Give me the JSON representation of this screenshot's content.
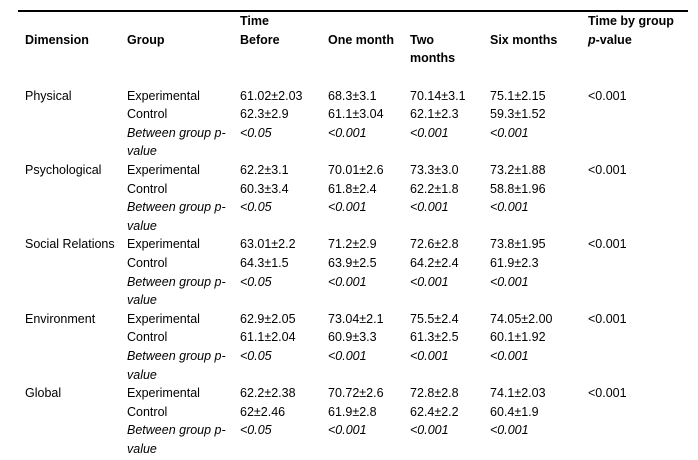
{
  "header": {
    "dimension": "Dimension",
    "group": "Group",
    "time": "Time",
    "before": "Before",
    "one_month": "One month",
    "two_line1": "Two",
    "two_line2": "months",
    "six_months": "Six months",
    "time_by_group": "Time by group",
    "p_italic": "p",
    "p_rest": "-value"
  },
  "blocks": [
    {
      "dimension": "Physical",
      "rows": [
        {
          "group": "Experimental",
          "values": [
            "61.02±2.03",
            "68.3±3.1",
            "70.14±3.1",
            "75.1±2.15"
          ],
          "time_by_group": "<0.001"
        },
        {
          "group": "Control",
          "values": [
            "62.3±2.9",
            "61.1±3.04",
            "62.1±2.3",
            "59.3±1.52"
          ],
          "time_by_group": ""
        },
        {
          "group": "Between group p-value",
          "values": [
            "<0.05",
            "<0.001",
            "<0.001",
            "<0.001"
          ],
          "time_by_group": ""
        }
      ]
    },
    {
      "dimension": "Psychological",
      "rows": [
        {
          "group": "Experimental",
          "values": [
            "62.2±3.1",
            "70.01±2.6",
            "73.3±3.0",
            "73.2±1.88"
          ],
          "time_by_group": "<0.001"
        },
        {
          "group": "Control",
          "values": [
            "60.3±3.4",
            "61.8±2.4",
            "62.2±1.8",
            "58.8±1.96"
          ],
          "time_by_group": ""
        },
        {
          "group": "Between group p-value",
          "values": [
            "<0.05",
            "<0.001",
            "<0.001",
            "<0.001"
          ],
          "time_by_group": ""
        }
      ]
    },
    {
      "dimension": "Social Relations",
      "rows": [
        {
          "group": "Experimental",
          "values": [
            "63.01±2.2",
            "71.2±2.9",
            "72.6±2.8",
            "73.8±1.95"
          ],
          "time_by_group": "<0.001"
        },
        {
          "group": "Control",
          "values": [
            "64.3±1.5",
            "63.9±2.5",
            "64.2±2.4",
            "61.9±2.3"
          ],
          "time_by_group": ""
        },
        {
          "group": "Between group p-value",
          "values": [
            "<0.05",
            "<0.001",
            "<0.001",
            "<0.001"
          ],
          "time_by_group": ""
        }
      ]
    },
    {
      "dimension": "Environment",
      "rows": [
        {
          "group": "Experimental",
          "values": [
            "62.9±2.05",
            "73.04±2.1",
            "75.5±2.4",
            "74.05±2.00"
          ],
          "time_by_group": "<0.001"
        },
        {
          "group": "Control",
          "values": [
            "61.1±2.04",
            "60.9±3.3",
            "61.3±2.5",
            "60.1±1.92"
          ],
          "time_by_group": ""
        },
        {
          "group": "Between group p-value",
          "values": [
            "<0.05",
            "<0.001",
            "<0.001",
            "<0.001"
          ],
          "time_by_group": ""
        }
      ]
    },
    {
      "dimension": "Global",
      "rows": [
        {
          "group": "Experimental",
          "values": [
            "62.2±2.38",
            "70.72±2.6",
            "72.8±2.8",
            "74.1±2.03"
          ],
          "time_by_group": "<0.001"
        },
        {
          "group": "Control",
          "values": [
            "62±2.46",
            "61.9±2.8",
            "62.4±2.2",
            "60.4±1.9"
          ],
          "time_by_group": ""
        },
        {
          "group": "Between group p-value",
          "values": [
            "<0.05",
            "<0.001",
            "<0.001",
            "<0.001"
          ],
          "time_by_group": ""
        }
      ]
    }
  ]
}
